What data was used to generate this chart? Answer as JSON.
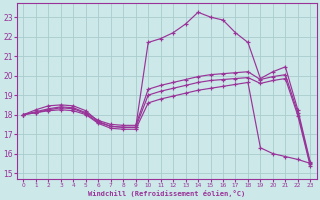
{
  "xlabel": "Windchill (Refroidissement éolien,°C)",
  "bg_color": "#cce8e8",
  "grid_color": "#aacccc",
  "line_color": "#993399",
  "xlim": [
    -0.5,
    23.5
  ],
  "ylim": [
    14.7,
    23.7
  ],
  "xticks": [
    0,
    1,
    2,
    3,
    4,
    5,
    6,
    7,
    8,
    9,
    10,
    11,
    12,
    13,
    14,
    15,
    16,
    17,
    18,
    19,
    20,
    21,
    22,
    23
  ],
  "yticks": [
    15,
    16,
    17,
    18,
    19,
    20,
    21,
    22,
    23
  ],
  "curves": [
    [
      18.0,
      18.25,
      18.45,
      18.5,
      18.45,
      18.2,
      17.65,
      17.4,
      17.35,
      17.35,
      21.7,
      21.9,
      22.2,
      22.65,
      23.25,
      23.0,
      22.85,
      22.2,
      21.7,
      19.85,
      20.2,
      20.45,
      18.25,
      15.55
    ],
    [
      18.0,
      18.15,
      18.3,
      18.4,
      18.35,
      18.1,
      17.7,
      17.5,
      17.45,
      17.45,
      19.3,
      19.5,
      19.65,
      19.8,
      19.95,
      20.05,
      20.1,
      20.15,
      20.2,
      19.8,
      19.95,
      20.05,
      18.1,
      15.45
    ],
    [
      18.0,
      18.1,
      18.25,
      18.35,
      18.3,
      18.05,
      17.6,
      17.4,
      17.35,
      17.35,
      19.0,
      19.2,
      19.35,
      19.5,
      19.65,
      19.75,
      19.8,
      19.85,
      19.9,
      19.6,
      19.75,
      19.85,
      17.95,
      15.35
    ],
    [
      18.0,
      18.1,
      18.2,
      18.25,
      18.2,
      18.0,
      17.55,
      17.3,
      17.25,
      17.25,
      18.6,
      18.8,
      18.95,
      19.1,
      19.25,
      19.35,
      19.45,
      19.55,
      19.65,
      16.3,
      16.0,
      15.85,
      15.7,
      15.5
    ]
  ]
}
